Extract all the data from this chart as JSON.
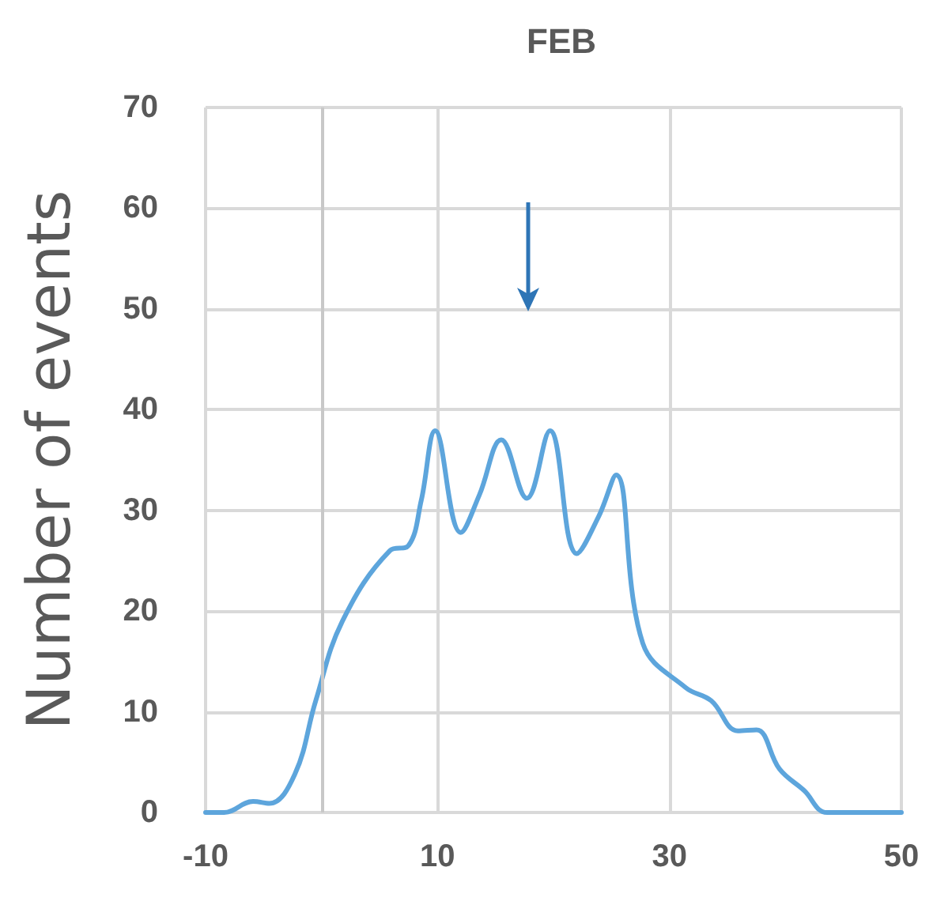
{
  "chart_data": {
    "type": "line",
    "title": "FEB",
    "ylabel": "Number of events",
    "x": [
      -10,
      -8.4,
      -5.9,
      -4.5,
      -2.3,
      -0.5,
      1.8,
      5.9,
      7.5,
      8.6,
      9.8,
      12.0,
      13.6,
      15.5,
      17.7,
      19.7,
      22.0,
      23.9,
      25.4,
      27.7,
      31.4,
      33.6,
      35.9,
      37.5,
      39.5,
      41.6,
      43.6,
      50
    ],
    "series": [
      {
        "color": "#5da5dc",
        "values": [
          0,
          0,
          1.1,
          0.9,
          3.8,
          11.1,
          19,
          26,
          26.5,
          31,
          37.9,
          27.8,
          31.5,
          37,
          31.2,
          37.9,
          25.7,
          29.4,
          33.5,
          16.8,
          12.4,
          11.1,
          8.1,
          8.2,
          4.3,
          2.2,
          0,
          0
        ]
      }
    ],
    "xlim": [
      -10,
      50
    ],
    "xticks": [
      -10,
      10,
      30,
      50
    ],
    "ylim": [
      0,
      70
    ],
    "yticks": [
      0,
      10,
      20,
      30,
      40,
      50,
      60,
      70
    ],
    "grid": true,
    "marker": "none",
    "line_style": "solid",
    "ref_lines": [
      {
        "axis": "x",
        "value": 0,
        "color": "#c8c8c8"
      }
    ]
  }
}
